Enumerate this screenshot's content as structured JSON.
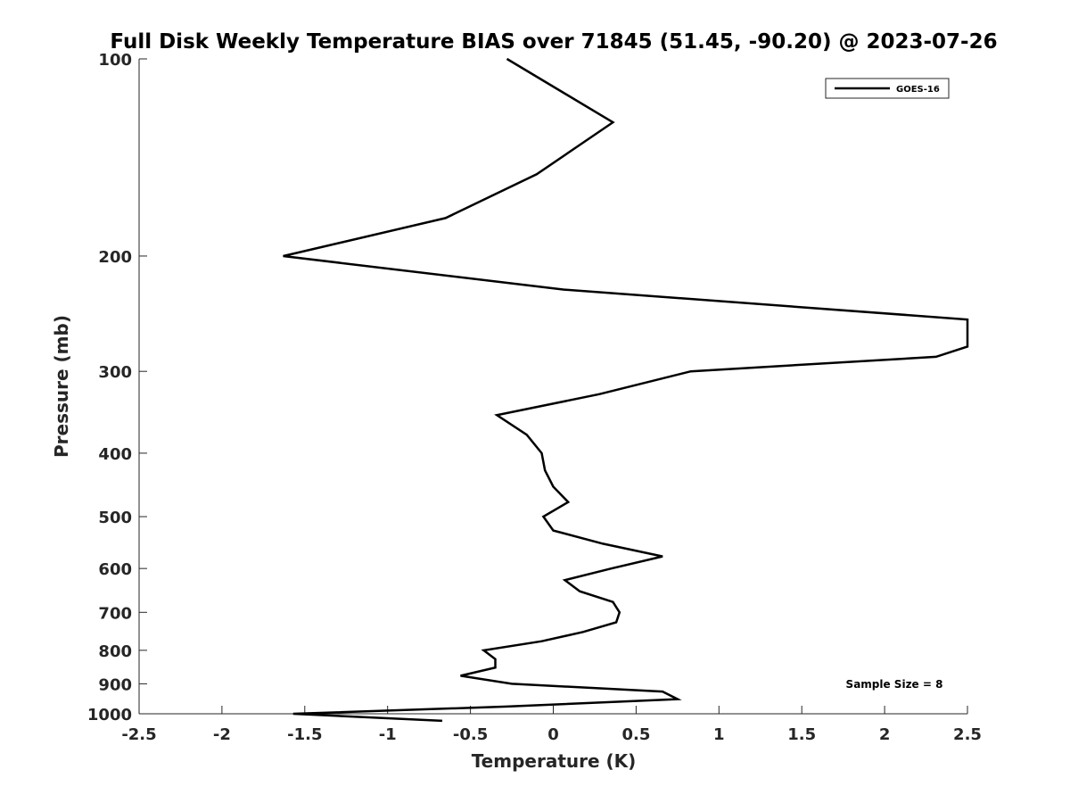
{
  "chart_data": {
    "type": "line",
    "title": "Full Disk Weekly Temperature BIAS over 71845 (51.45, -90.20) @ 2023-07-26",
    "xlabel": "Temperature (K)",
    "ylabel": "Pressure (mb)",
    "xlim": [
      -2.5,
      2.5
    ],
    "ylim": [
      1000,
      100
    ],
    "y_scale": "log",
    "y_reversed": true,
    "x_ticks": [
      "-2.5",
      "-2",
      "-1.5",
      "-1",
      "-0.5",
      "0",
      "0.5",
      "1",
      "1.5",
      "2",
      "2.5"
    ],
    "x_tick_values": [
      -2.5,
      -2,
      -1.5,
      -1,
      -0.5,
      0,
      0.5,
      1,
      1.5,
      2,
      2.5
    ],
    "y_ticks": [
      "100",
      "200",
      "300",
      "400",
      "500",
      "600",
      "700",
      "800",
      "900",
      "1000"
    ],
    "y_tick_values": [
      100,
      200,
      300,
      400,
      500,
      600,
      700,
      800,
      900,
      1000
    ],
    "grid": false,
    "legend_position": "top-right",
    "annotation": "Sample Size = 8",
    "series": [
      {
        "name": "GOES-16",
        "color": "#000000",
        "points": [
          {
            "x": -0.28,
            "y": 100
          },
          {
            "x": 0.36,
            "y": 125
          },
          {
            "x": -0.1,
            "y": 150
          },
          {
            "x": -0.65,
            "y": 175
          },
          {
            "x": -1.63,
            "y": 200
          },
          {
            "x": 0.06,
            "y": 225
          },
          {
            "x": 2.5,
            "y": 250
          },
          {
            "x": 2.5,
            "y": 275
          },
          {
            "x": 2.31,
            "y": 285
          },
          {
            "x": 0.83,
            "y": 300
          },
          {
            "x": 0.28,
            "y": 325
          },
          {
            "x": -0.34,
            "y": 350
          },
          {
            "x": -0.16,
            "y": 375
          },
          {
            "x": -0.07,
            "y": 400
          },
          {
            "x": -0.05,
            "y": 425
          },
          {
            "x": 0.0,
            "y": 450
          },
          {
            "x": 0.09,
            "y": 475
          },
          {
            "x": -0.06,
            "y": 500
          },
          {
            "x": 0.0,
            "y": 525
          },
          {
            "x": 0.3,
            "y": 550
          },
          {
            "x": 0.66,
            "y": 575
          },
          {
            "x": 0.35,
            "y": 600
          },
          {
            "x": 0.07,
            "y": 625
          },
          {
            "x": 0.16,
            "y": 650
          },
          {
            "x": 0.36,
            "y": 675
          },
          {
            "x": 0.4,
            "y": 700
          },
          {
            "x": 0.38,
            "y": 725
          },
          {
            "x": 0.18,
            "y": 750
          },
          {
            "x": -0.07,
            "y": 775
          },
          {
            "x": -0.42,
            "y": 800
          },
          {
            "x": -0.35,
            "y": 825
          },
          {
            "x": -0.35,
            "y": 850
          },
          {
            "x": -0.56,
            "y": 875
          },
          {
            "x": -0.25,
            "y": 900
          },
          {
            "x": 0.66,
            "y": 925
          },
          {
            "x": 0.75,
            "y": 950
          },
          {
            "x": -0.28,
            "y": 975
          },
          {
            "x": -1.57,
            "y": 1000
          },
          {
            "x": -0.67,
            "y": 1025
          }
        ]
      }
    ]
  }
}
